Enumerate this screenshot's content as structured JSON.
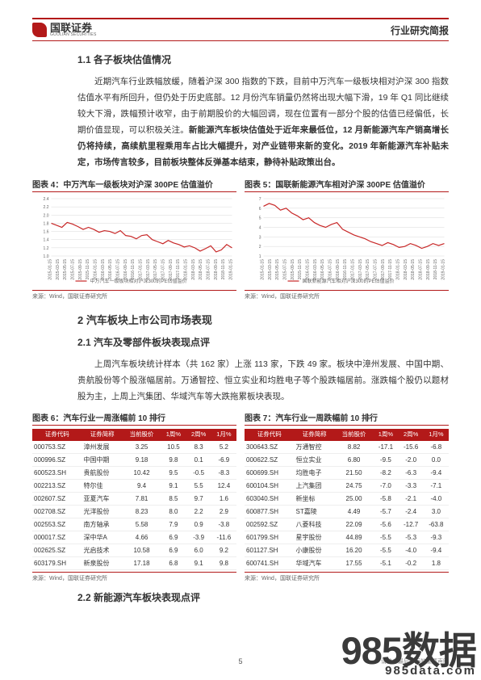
{
  "header": {
    "logo_cn": "国联证券",
    "logo_en": "GUOLIAN SECURITIES",
    "right": "行业研究简报"
  },
  "sec11": {
    "title": "1.1  各子板块估值情况",
    "para": "近期汽车行业跌幅放缓，随着沪深 300 指数的下跌，目前中万汽车一级板块相对沪深 300 指数估值水平有所回升，但仍处于历史底部。12 月份汽车销量仍然将出现大幅下滑，19 年 Q1 同比继续较大下滑，跌幅预计收窄，由于前期股价的大幅回调，现在位置有一部分个股的估值已经偏低，长期价值显现，可以积极关注。",
    "para_bold": "新能源汽车板块估值处于近年来最低位，12 月新能源汽车产销高增长仍将持续，高续航里程乘用车占比大幅提升，对产业链带来新的变化。2019 年新能源汽车补贴未定，市场传言较多，目前板块整体反弹基本结束，静待补贴政策出台。"
  },
  "chart4": {
    "title": "图表 4：中万汽车一级板块对沪深 300PE 估值溢价",
    "source": "来源：Wind，国联证券研究所",
    "legend": "中万汽车一级板块相对沪深300的PE估值溢价",
    "yticks": [
      "1.0",
      "1.2",
      "1.4",
      "1.6",
      "1.8",
      "2.0",
      "2.2",
      "2.4"
    ],
    "xticks": [
      "2015-01-15",
      "2015-03-15",
      "2015-05-15",
      "2015-07-15",
      "2015-09-15",
      "2015-11-15",
      "2016-01-15",
      "2016-03-15",
      "2016-05-15",
      "2016-07-15",
      "2016-09-15",
      "2016-11-15",
      "2017-01-15",
      "2017-03-15",
      "2017-05-15",
      "2017-07-15",
      "2017-09-15",
      "2017-11-15",
      "2018-01-15",
      "2018-03-15",
      "2018-05-15",
      "2018-07-15",
      "2018-09-15",
      "2018-11-15",
      "2019-01-15"
    ],
    "line_color": "#c82828",
    "grid_color": "#d9d9d9",
    "values": [
      1.8,
      1.75,
      1.7,
      1.82,
      1.78,
      1.72,
      1.65,
      1.7,
      1.65,
      1.58,
      1.62,
      1.6,
      1.55,
      1.62,
      1.5,
      1.48,
      1.42,
      1.5,
      1.52,
      1.4,
      1.35,
      1.3,
      1.38,
      1.32,
      1.28,
      1.22,
      1.25,
      1.2,
      1.12,
      1.18,
      1.25,
      1.1,
      1.15,
      1.28,
      1.2
    ]
  },
  "chart5": {
    "title": "图表 5：国联新能源汽车相对沪深 300PE 估值溢价",
    "source": "来源：Wind，国联证券研究所",
    "legend": "国联新能源汽车相对沪深300的PE估值溢价",
    "yticks": [
      "1",
      "2",
      "3",
      "4",
      "5",
      "6",
      "7"
    ],
    "xticks": [
      "2015-01-15",
      "2015-03-15",
      "2015-05-15",
      "2015-07-15",
      "2015-09-15",
      "2015-11-15",
      "2016-01-15",
      "2016-03-15",
      "2016-05-15",
      "2016-07-15",
      "2016-09-15",
      "2016-11-15",
      "2017-01-15",
      "2017-03-15",
      "2017-05-15",
      "2017-07-15",
      "2017-09-15",
      "2017-11-15",
      "2018-01-15",
      "2018-03-15",
      "2018-05-15",
      "2018-07-15",
      "2018-09-15",
      "2018-11-15",
      "2019-01-15"
    ],
    "line_color": "#c82828",
    "grid_color": "#d9d9d9",
    "values": [
      6.2,
      6.5,
      6.3,
      5.8,
      6.0,
      5.5,
      5.2,
      4.8,
      5.0,
      4.5,
      4.2,
      4.0,
      4.3,
      4.5,
      3.8,
      3.5,
      3.2,
      3.0,
      2.8,
      2.5,
      2.3,
      2.1,
      2.4,
      2.2,
      1.9,
      2.0,
      2.3,
      2.1,
      1.8,
      2.0,
      2.3,
      2.1,
      2.3
    ]
  },
  "sec2": {
    "title": "2  汽车板块上市公司市场表现"
  },
  "sec21": {
    "title": "2.1  汽车及零部件板块表现点评",
    "para": "上周汽车板块统计样本（共 162 家）上涨 113 家，下跌 49 家。板块中漳州发展、中国中期、贵航股份等个股涨幅居前。万通智控、恒立实业和均胜电子等个股跌幅居前。涨跌幅个股仍以题材股为主，上周上汽集团、华域汽车等大跌拖累板块表现。"
  },
  "table6": {
    "title": "图表 6：汽车行业一周涨幅前 10 排行",
    "source": "来源：Wind，国联证券研究所",
    "headers": [
      "证券代码",
      "证券简称",
      "当前股价",
      "1周%",
      "2周%",
      "1月%"
    ],
    "header_bg": "#b31919",
    "rows": [
      [
        "000753.SZ",
        "漳州发展",
        "3.25",
        "10.5",
        "8.3",
        "5.2"
      ],
      [
        "000996.SZ",
        "中国中期",
        "9.18",
        "9.8",
        "0.1",
        "-6.9"
      ],
      [
        "600523.SH",
        "贵航股份",
        "10.42",
        "9.5",
        "-0.5",
        "-8.3"
      ],
      [
        "002213.SZ",
        "特尔佳",
        "9.4",
        "9.1",
        "5.5",
        "12.4"
      ],
      [
        "002607.SZ",
        "亚夏汽车",
        "7.81",
        "8.5",
        "9.7",
        "1.6"
      ],
      [
        "002708.SZ",
        "光洋股份",
        "8.23",
        "8.0",
        "2.2",
        "2.9"
      ],
      [
        "002553.SZ",
        "南方轴承",
        "5.58",
        "7.9",
        "0.9",
        "-3.8"
      ],
      [
        "000017.SZ",
        "深中华A",
        "4.66",
        "6.9",
        "-3.9",
        "-11.6"
      ],
      [
        "002625.SZ",
        "光启技术",
        "10.58",
        "6.9",
        "6.0",
        "9.2"
      ],
      [
        "603179.SH",
        "新泉股份",
        "17.18",
        "6.8",
        "9.1",
        "9.8"
      ]
    ]
  },
  "table7": {
    "title": "图表 7：汽车行业一周跌幅前 10 排行",
    "source": "来源：Wind，国联证券研究所",
    "headers": [
      "证券代码",
      "证券简称",
      "当前股价",
      "1周%",
      "2周%",
      "1月%"
    ],
    "header_bg": "#b31919",
    "rows": [
      [
        "300643.SZ",
        "万通智控",
        "8.82",
        "-17.1",
        "-15.6",
        "-6.8"
      ],
      [
        "000622.SZ",
        "恒立实业",
        "6.80",
        "-9.5",
        "-2.0",
        "0.0"
      ],
      [
        "600699.SH",
        "均胜电子",
        "21.50",
        "-8.2",
        "-6.3",
        "-9.4"
      ],
      [
        "600104.SH",
        "上汽集团",
        "24.75",
        "-7.0",
        "-3.3",
        "-7.1"
      ],
      [
        "603040.SH",
        "新坐标",
        "25.00",
        "-5.8",
        "-2.1",
        "-4.0"
      ],
      [
        "600877.SH",
        "ST嘉陵",
        "4.49",
        "-5.7",
        "-2.4",
        "3.0"
      ],
      [
        "002592.SZ",
        "八菱科技",
        "22.09",
        "-5.6",
        "-12.7",
        "-63.8"
      ],
      [
        "601799.SH",
        "星宇股份",
        "44.89",
        "-5.5",
        "-5.3",
        "-9.3"
      ],
      [
        "601127.SH",
        "小康股份",
        "16.20",
        "-5.5",
        "-4.0",
        "-9.4"
      ],
      [
        "600741.SH",
        "华域汽车",
        "17.55",
        "-5.1",
        "-0.2",
        "1.8"
      ]
    ]
  },
  "sec22": {
    "title": "2.2  新能源汽车板块表现点评"
  },
  "pagenum": "5",
  "footer_note": "请参考最后一页的重要声明",
  "watermark": {
    "big": "985数据",
    "sub": "985data.com"
  }
}
